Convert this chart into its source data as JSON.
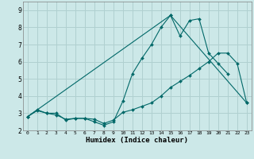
{
  "background_color": "#cce8e8",
  "grid_color": "#b0d0d0",
  "line_color": "#006868",
  "xlabel": "Humidex (Indice chaleur)",
  "ylim": [
    2.0,
    9.5
  ],
  "xlim": [
    -0.5,
    23.5
  ],
  "yticks": [
    2,
    3,
    4,
    5,
    6,
    7,
    8,
    9
  ],
  "xticks": [
    0,
    1,
    2,
    3,
    4,
    5,
    6,
    7,
    8,
    9,
    10,
    11,
    12,
    13,
    14,
    15,
    16,
    17,
    18,
    19,
    20,
    21,
    22,
    23
  ],
  "line1_x": [
    0,
    1,
    2,
    3,
    4,
    5,
    6,
    7,
    8,
    9,
    10,
    11,
    12,
    13,
    14,
    15,
    16,
    17,
    18,
    19,
    20,
    21
  ],
  "line1_y": [
    2.8,
    3.2,
    3.0,
    3.0,
    2.6,
    2.7,
    2.7,
    2.5,
    2.3,
    2.5,
    3.7,
    5.3,
    6.2,
    7.0,
    8.0,
    8.7,
    7.5,
    8.4,
    8.5,
    6.5,
    5.9,
    5.3
  ],
  "line2_x": [
    0,
    1,
    2,
    3,
    4,
    5,
    6,
    7,
    8,
    9,
    10,
    11,
    12,
    13,
    14,
    15,
    16,
    17,
    18,
    19,
    20,
    21,
    22,
    23
  ],
  "line2_y": [
    2.8,
    3.15,
    3.0,
    2.9,
    2.65,
    2.7,
    2.7,
    2.65,
    2.4,
    2.6,
    3.05,
    3.2,
    3.4,
    3.6,
    4.0,
    4.5,
    4.85,
    5.2,
    5.6,
    6.0,
    6.5,
    6.5,
    5.9,
    3.6
  ],
  "line3_x": [
    0,
    15,
    23
  ],
  "line3_y": [
    2.8,
    8.7,
    3.6
  ]
}
